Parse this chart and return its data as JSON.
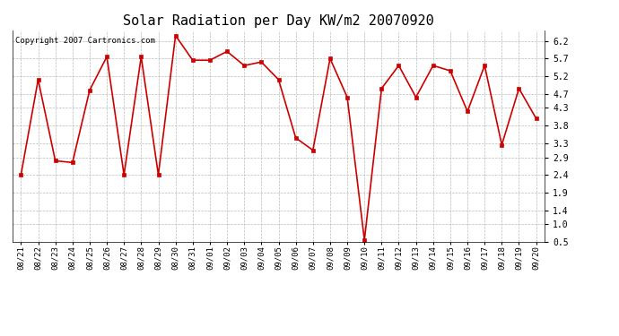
{
  "title": "Solar Radiation per Day KW/m2 20070920",
  "copyright_text": "Copyright 2007 Cartronics.com",
  "labels": [
    "08/21",
    "08/22",
    "08/23",
    "08/24",
    "08/25",
    "08/26",
    "08/27",
    "08/28",
    "08/29",
    "08/30",
    "08/31",
    "09/01",
    "09/02",
    "09/03",
    "09/04",
    "09/05",
    "09/06",
    "09/07",
    "09/08",
    "09/09",
    "09/10",
    "09/11",
    "09/12",
    "09/13",
    "09/14",
    "09/15",
    "09/16",
    "09/17",
    "09/18",
    "09/19",
    "09/20"
  ],
  "values": [
    2.4,
    5.1,
    2.8,
    2.75,
    4.8,
    5.75,
    2.4,
    5.75,
    2.4,
    6.35,
    5.65,
    5.65,
    5.9,
    5.5,
    5.6,
    5.1,
    3.45,
    3.1,
    5.7,
    4.6,
    0.55,
    4.85,
    5.5,
    4.6,
    5.5,
    5.35,
    4.2,
    5.5,
    3.25,
    4.85,
    4.0
  ],
  "line_color": "#cc0000",
  "marker": "s",
  "marker_size": 2.5,
  "background_color": "#ffffff",
  "plot_bg_color": "#ffffff",
  "grid_color": "#bbbbbb",
  "ylim": [
    0.5,
    6.5
  ],
  "yticks": [
    0.5,
    1.0,
    1.4,
    1.9,
    2.4,
    2.9,
    3.3,
    3.8,
    4.3,
    4.7,
    5.2,
    5.7,
    6.2
  ],
  "title_fontsize": 11,
  "copyright_fontsize": 6.5,
  "tick_fontsize": 6.5,
  "ytick_fontsize": 7
}
